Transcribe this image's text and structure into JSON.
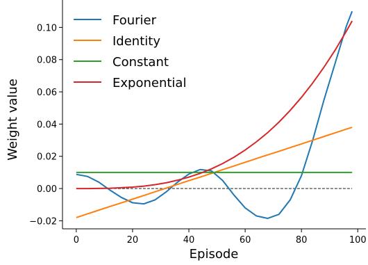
{
  "chart_data": {
    "type": "line",
    "xlabel": "Episode",
    "ylabel": "Weight value",
    "x": [
      0,
      4,
      8,
      12,
      16,
      20,
      24,
      28,
      32,
      36,
      40,
      44,
      48,
      52,
      56,
      60,
      64,
      68,
      72,
      76,
      80,
      84,
      88,
      92,
      96,
      98
    ],
    "series": [
      {
        "name": "Fourier",
        "color": "#1f77b4",
        "values": [
          0.0088,
          0.0075,
          0.004,
          -0.001,
          -0.0055,
          -0.0088,
          -0.0095,
          -0.007,
          -0.002,
          0.004,
          0.009,
          0.0118,
          0.011,
          0.005,
          -0.004,
          -0.012,
          -0.017,
          -0.0185,
          -0.016,
          -0.007,
          0.008,
          0.03,
          0.055,
          0.078,
          0.101,
          0.11
        ]
      },
      {
        "name": "Identity",
        "color": "#ff7f0e",
        "values": [
          -0.018,
          -0.0157,
          -0.0134,
          -0.0111,
          -0.0089,
          -0.0066,
          -0.0043,
          -0.002,
          0.0003,
          0.0026,
          0.0049,
          0.0071,
          0.0094,
          0.0117,
          0.014,
          0.0163,
          0.0186,
          0.0209,
          0.0231,
          0.0254,
          0.0277,
          0.03,
          0.0323,
          0.0346,
          0.0369,
          0.038
        ]
      },
      {
        "name": "Constant",
        "color": "#2ca02c",
        "values": [
          0.01,
          0.01,
          0.01,
          0.01,
          0.01,
          0.01,
          0.01,
          0.01,
          0.01,
          0.01,
          0.01,
          0.01,
          0.01,
          0.01,
          0.01,
          0.01,
          0.01,
          0.01,
          0.01,
          0.01,
          0.01,
          0.01,
          0.01,
          0.01,
          0.01,
          0.01
        ]
      },
      {
        "name": "Exponential",
        "color": "#d62728",
        "values": [
          0,
          0,
          0.0001,
          0.0002,
          0.0005,
          0.0009,
          0.0015,
          0.0024,
          0.0036,
          0.0052,
          0.0071,
          0.0094,
          0.0122,
          0.0155,
          0.0194,
          0.0239,
          0.029,
          0.0347,
          0.0412,
          0.0485,
          0.0566,
          0.0655,
          0.0753,
          0.086,
          0.0978,
          0.104
        ]
      }
    ],
    "reference_line": {
      "y": 0,
      "color": "#333333",
      "style": "dashed"
    },
    "xlim": [
      -4.9,
      102.9
    ],
    "ylim": [
      -0.025,
      0.117
    ],
    "xticks": [
      0,
      20,
      40,
      60,
      80,
      100
    ],
    "yticks": [
      {
        "value": -0.02,
        "label": "−0.02"
      },
      {
        "value": 0,
        "label": "0.00"
      },
      {
        "value": 0.02,
        "label": "0.02"
      },
      {
        "value": 0.04,
        "label": "0.04"
      },
      {
        "value": 0.06,
        "label": "0.06"
      },
      {
        "value": 0.08,
        "label": "0.08"
      },
      {
        "value": 0.1,
        "label": "0.10"
      }
    ],
    "legend": "upper left",
    "grid": false
  }
}
